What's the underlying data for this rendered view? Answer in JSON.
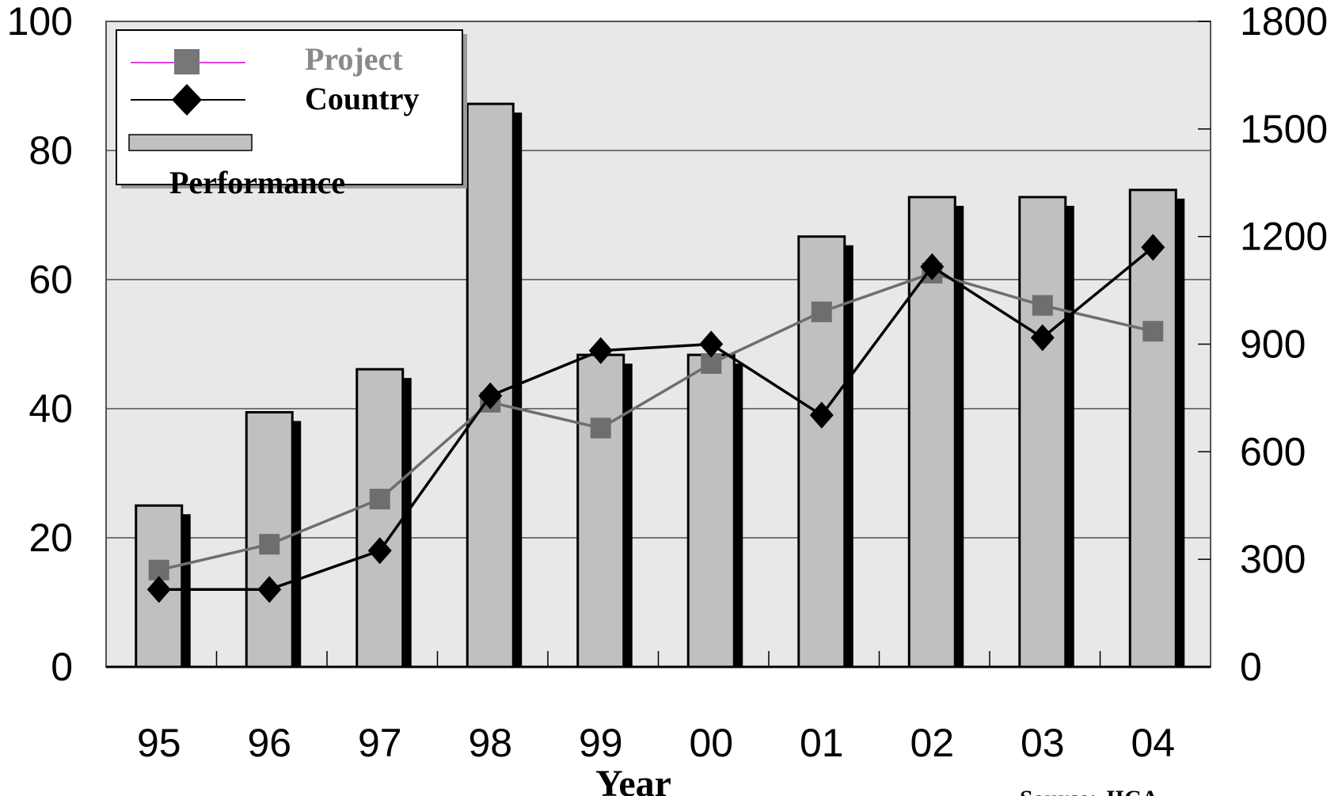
{
  "chart_data": {
    "type": "bar",
    "title": "",
    "xlabel": "Year",
    "ylabel": "",
    "y2label": "",
    "source": "Source: JICA",
    "categories": [
      "95",
      "96",
      "97",
      "98",
      "99",
      "00",
      "01",
      "02",
      "03",
      "04"
    ],
    "ylim": [
      0,
      100
    ],
    "yticks": [
      0,
      20,
      40,
      60,
      80,
      100
    ],
    "y2lim": [
      0,
      1800
    ],
    "y2ticks": [
      0,
      300,
      600,
      900,
      1200,
      1500,
      1800
    ],
    "grid": true,
    "legend_position": "top-left",
    "series": [
      {
        "name": "Performance",
        "type": "bar",
        "axis": "right",
        "color": "#c0c0c0",
        "values": [
          450,
          710,
          830,
          1570,
          870,
          870,
          1200,
          1310,
          1310,
          1330
        ]
      },
      {
        "name": "Project",
        "type": "line",
        "axis": "left",
        "color": "#6e6e6e",
        "marker": "square",
        "values": [
          15,
          19,
          26,
          41,
          37,
          47,
          55,
          61,
          56,
          52
        ]
      },
      {
        "name": "Country",
        "type": "line",
        "axis": "left",
        "color": "#000000",
        "marker": "diamond",
        "values": [
          12,
          12,
          18,
          42,
          49,
          50,
          39,
          62,
          51,
          65
        ]
      }
    ],
    "colors": {
      "plot_background": "#e8e8e8",
      "bar_shadow": "#000000",
      "legend_project_line": "#e040e0"
    }
  }
}
